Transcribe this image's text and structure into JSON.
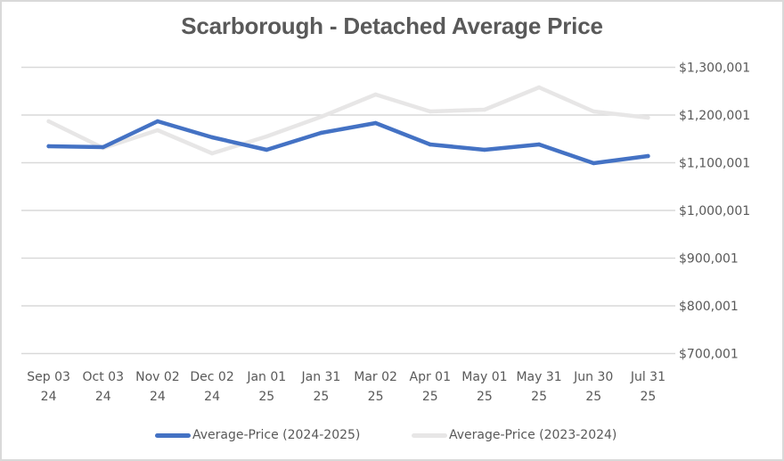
{
  "chart_data": {
    "type": "line",
    "title": "Scarborough - Detached Average Price",
    "xlabel": "",
    "ylabel": "",
    "categories": [
      [
        "Sep 03",
        "24"
      ],
      [
        "Oct 03",
        "24"
      ],
      [
        "Nov 02",
        "24"
      ],
      [
        "Dec 02",
        "24"
      ],
      [
        "Jan 01",
        "25"
      ],
      [
        "Jan 31",
        "25"
      ],
      [
        "Mar 02",
        "25"
      ],
      [
        "Apr 01",
        "25"
      ],
      [
        "May 01",
        "25"
      ],
      [
        "May 31",
        "25"
      ],
      [
        "Jun 30",
        "25"
      ],
      [
        "Jul 31",
        "25"
      ]
    ],
    "ylim": [
      700001,
      1300001
    ],
    "yticks": [
      1300001,
      1200001,
      1100001,
      1000001,
      900001,
      800001,
      700001
    ],
    "ytick_labels": [
      "$1,300,001",
      "$1,200,001",
      "$1,100,001",
      "$1,000,001",
      "$900,001",
      "$800,001",
      "$700,001"
    ],
    "y_axis_position": "right",
    "grid": true,
    "legend_position": "bottom",
    "series": [
      {
        "name": "Average-Price (2024-2025)",
        "color": "#4472c4",
        "values": [
          1134600,
          1132700,
          1186900,
          1153300,
          1127100,
          1162600,
          1183200,
          1138300,
          1127100,
          1138300,
          1099100,
          1114000
        ]
      },
      {
        "name": "Average-Price (2023-2024)",
        "color": "#e7e6e6",
        "values": [
          1186900,
          1130800,
          1168200,
          1119600,
          1155100,
          1196300,
          1243000,
          1207500,
          1211200,
          1258000,
          1207500,
          1194400
        ]
      }
    ]
  },
  "colors": {
    "gridline": "#d9d9d9",
    "text": "#595959",
    "border": "#d9d9d9"
  }
}
